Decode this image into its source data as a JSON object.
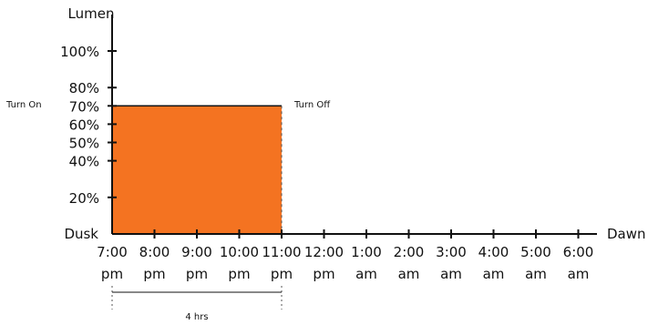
{
  "chart_data": {
    "type": "area",
    "ylabel": "Lumen",
    "xlabel": "",
    "y_ticks": [
      {
        "value": 20,
        "label": "20%"
      },
      {
        "value": 40,
        "label": "40%"
      },
      {
        "value": 50,
        "label": "50%"
      },
      {
        "value": 60,
        "label": "60%"
      },
      {
        "value": 70,
        "label": "70%"
      },
      {
        "value": 80,
        "label": "80%"
      },
      {
        "value": 100,
        "label": "100%"
      }
    ],
    "ylim": [
      0,
      100
    ],
    "y_axis_origin_label": "Dusk",
    "x_axis_end_label": "Dawn",
    "x_ticks": [
      {
        "time": "7:00",
        "period": "pm"
      },
      {
        "time": "8:00",
        "period": "pm"
      },
      {
        "time": "9:00",
        "period": "pm"
      },
      {
        "time": "10:00",
        "period": "pm"
      },
      {
        "time": "11:00",
        "period": "pm"
      },
      {
        "time": "12:00",
        "period": "pm"
      },
      {
        "time": "1:00",
        "period": "am"
      },
      {
        "time": "2:00",
        "period": "am"
      },
      {
        "time": "3:00",
        "period": "am"
      },
      {
        "time": "4:00",
        "period": "am"
      },
      {
        "time": "5:00",
        "period": "am"
      },
      {
        "time": "6:00",
        "period": "am"
      }
    ],
    "block": {
      "start_index": 0,
      "end_index": 4,
      "level": 70,
      "color": "#F47321",
      "start_label": "Turn On",
      "end_label": "Turn Off"
    },
    "duration_label": "4 hrs",
    "grid": false,
    "legend": "none"
  }
}
